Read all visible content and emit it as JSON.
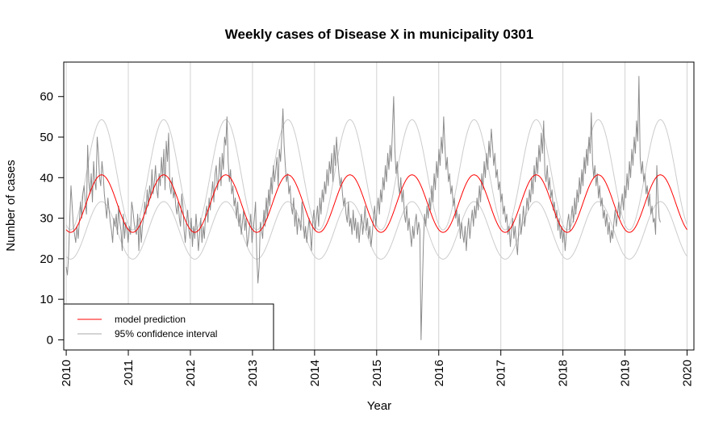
{
  "chart_data": {
    "type": "line",
    "title": "Weekly cases of Disease X in municipality 0301",
    "xlabel": "Year",
    "ylabel": "Number of cases",
    "xlim": [
      2009.96,
      2020.11
    ],
    "ylim": [
      -2.5,
      68.5
    ],
    "x_ticks": [
      2010,
      2011,
      2012,
      2013,
      2014,
      2015,
      2016,
      2017,
      2018,
      2019,
      2020
    ],
    "x_tick_labels": [
      "2010",
      "2011",
      "2012",
      "2013",
      "2014",
      "2015",
      "2016",
      "2017",
      "2018",
      "2019",
      "2020"
    ],
    "y_ticks": [
      0,
      10,
      20,
      30,
      40,
      50,
      60
    ],
    "y_tick_labels": [
      "0",
      "10",
      "20",
      "30",
      "40",
      "50",
      "60"
    ],
    "vertical_grid_at": [
      2010,
      2011,
      2012,
      2013,
      2014,
      2015,
      2016,
      2017,
      2018,
      2019,
      2020
    ],
    "grid_color": "#d3d3d3",
    "legend": {
      "position": "bottom-left",
      "entries": [
        {
          "label": "model prediction",
          "color": "#ff0000"
        },
        {
          "label": "95% confidence interval",
          "color": "#a9a9a9"
        }
      ]
    },
    "series": [
      {
        "role": "model prediction",
        "color": "#ff0000",
        "model": {
          "mean": 33.6,
          "amplitude": 7.1,
          "peak": 2010.57,
          "period": 1.0
        },
        "x_start": 2010.0,
        "x_end": 2020.0
      },
      {
        "role": "95% confidence interval (upper)",
        "color": "#cccccc",
        "model": {
          "mean": 40.7,
          "amplitude": 13.6,
          "peak": 2010.57,
          "period": 1.0
        },
        "x_start": 2010.0,
        "x_end": 2020.0
      },
      {
        "role": "95% confidence interval (lower)",
        "color": "#cccccc",
        "model": {
          "mean": 27.0,
          "amplitude": 7.1,
          "peak": 2010.57,
          "period": 1.0
        },
        "x_start": 2010.0,
        "x_end": 2020.0
      },
      {
        "role": "observed weekly cases",
        "color": "#8c8c8c",
        "x_start": 2010.0,
        "x_step": 0.019178,
        "values": [
          18,
          16,
          21,
          30,
          38,
          33,
          28,
          26,
          24,
          28,
          25,
          29,
          34,
          30,
          36,
          38,
          34,
          31,
          48,
          39,
          36,
          41,
          34,
          44,
          39,
          37,
          50,
          46,
          40,
          38,
          44,
          41,
          36,
          33,
          30,
          35,
          32,
          29,
          27,
          24,
          30,
          28,
          31,
          26,
          33,
          29,
          27,
          22,
          31,
          25,
          29,
          27,
          24,
          28,
          26,
          34,
          32,
          29,
          27,
          26,
          31,
          22,
          30,
          24,
          28,
          30,
          34,
          31,
          37,
          33,
          38,
          35,
          42,
          36,
          39,
          43,
          37,
          35,
          41,
          38,
          45,
          40,
          47,
          37,
          49,
          44,
          51,
          38,
          36,
          40,
          35,
          37,
          33,
          31,
          34,
          30,
          28,
          36,
          33,
          27,
          24,
          29,
          32,
          27,
          25,
          30,
          23,
          28,
          25,
          31,
          27,
          22,
          26,
          30,
          24,
          28,
          25,
          31,
          33,
          29,
          35,
          32,
          36,
          39,
          34,
          41,
          43,
          37,
          40,
          45,
          38,
          46,
          42,
          50,
          48,
          55,
          44,
          39,
          42,
          36,
          38,
          33,
          35,
          30,
          34,
          28,
          31,
          26,
          29,
          32,
          27,
          30,
          23,
          25,
          28,
          31,
          24,
          27,
          30,
          34,
          21,
          14,
          18,
          29,
          27,
          25,
          32,
          28,
          35,
          30,
          37,
          33,
          40,
          36,
          43,
          39,
          42,
          45,
          38,
          47,
          44,
          50,
          57,
          48,
          43,
          39,
          41,
          36,
          38,
          33,
          31,
          35,
          28,
          32,
          26,
          30,
          29,
          27,
          34,
          31,
          25,
          28,
          24,
          27,
          30,
          26,
          22,
          29,
          32,
          27,
          30,
          33,
          28,
          35,
          31,
          37,
          34,
          39,
          36,
          42,
          38,
          44,
          41,
          46,
          39,
          48,
          43,
          50,
          45,
          41,
          38,
          40,
          36,
          33,
          35,
          31,
          29,
          34,
          28,
          30,
          26,
          32,
          27,
          30,
          25,
          29,
          24,
          28,
          31,
          26,
          29,
          33,
          27,
          30,
          25,
          28,
          23,
          26,
          30,
          33,
          28,
          32,
          35,
          31,
          37,
          34,
          40,
          37,
          43,
          39,
          46,
          42,
          48,
          44,
          52,
          60,
          47,
          41,
          44,
          38,
          36,
          40,
          34,
          37,
          31,
          29,
          33,
          27,
          30,
          26,
          23,
          28,
          25,
          29,
          31,
          26,
          29,
          27,
          0,
          12,
          24,
          31,
          28,
          33,
          30,
          35,
          32,
          38,
          34,
          41,
          37,
          44,
          40,
          47,
          43,
          50,
          46,
          55,
          48,
          42,
          45,
          39,
          41,
          36,
          38,
          33,
          35,
          30,
          32,
          28,
          31,
          25,
          29,
          26,
          24,
          28,
          22,
          27,
          30,
          25,
          29,
          32,
          28,
          33,
          30,
          35,
          32,
          38,
          34,
          41,
          37,
          44,
          40,
          46,
          42,
          49,
          45,
          52,
          48,
          43,
          46,
          40,
          42,
          37,
          39,
          34,
          36,
          31,
          33,
          29,
          31,
          26,
          28,
          23,
          27,
          30,
          25,
          28,
          24,
          21,
          27,
          31,
          26,
          29,
          33,
          28,
          31,
          35,
          32,
          37,
          34,
          40,
          36,
          43,
          39,
          45,
          41,
          48,
          44,
          51,
          46,
          54,
          41,
          39,
          43,
          37,
          40,
          35,
          37,
          32,
          34,
          30,
          32,
          27,
          30,
          25,
          28,
          24,
          27,
          22,
          26,
          29,
          31,
          27,
          30,
          33,
          29,
          35,
          31,
          37,
          34,
          40,
          36,
          42,
          38,
          45,
          41,
          47,
          43,
          50,
          46,
          56,
          44,
          40,
          43,
          38,
          41,
          35,
          38,
          33,
          35,
          30,
          32,
          28,
          31,
          26,
          29,
          24,
          27,
          25,
          29,
          32,
          28,
          31,
          34,
          30,
          33,
          36,
          32,
          38,
          35,
          41,
          37,
          44,
          40,
          47,
          43,
          50,
          46,
          54,
          49,
          65,
          45,
          41,
          44,
          39,
          41,
          36,
          38,
          33,
          36,
          31,
          33,
          29,
          30,
          26,
          43,
          35,
          30,
          29
        ]
      }
    ]
  }
}
